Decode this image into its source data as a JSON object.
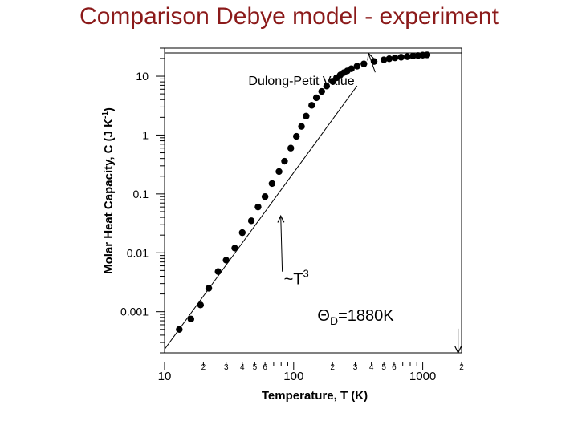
{
  "slide": {
    "title": "Comparison Debye model - experiment"
  },
  "chart_data": {
    "type": "scatter",
    "scale": "log-log",
    "xlabel": "Temperature, T (K)",
    "ylabel_main": "Molar Heat Capacity, C  (J K",
    "ylabel_sup": "-1",
    "ylabel_end": ")",
    "xlim": [
      10,
      2000
    ],
    "ylim": [
      0.0002,
      30
    ],
    "x_major_ticks": [
      10,
      100,
      1000
    ],
    "x_major_labels": [
      "10",
      "100",
      "1000"
    ],
    "x_minor_ticks": [
      20,
      30,
      40,
      50,
      60,
      200,
      300,
      400,
      500,
      600,
      2000
    ],
    "x_minor_labels": [
      "2",
      "3",
      "4",
      "5",
      "6",
      "2",
      "3",
      "4",
      "5",
      "6",
      "2"
    ],
    "y_major_ticks": [
      0.001,
      0.01,
      0.1,
      1,
      10
    ],
    "y_major_labels": [
      "0.001",
      "0.01",
      "0.1",
      "1",
      "10"
    ],
    "grid": false,
    "series": [
      {
        "kind": "points",
        "x": [
          13,
          16,
          19,
          22,
          26,
          30,
          35,
          40,
          47,
          53,
          60,
          68,
          77,
          85,
          95,
          105,
          115,
          125,
          138,
          150,
          165,
          180,
          200,
          215,
          230,
          245,
          260,
          280,
          310,
          350,
          420,
          500,
          550,
          610,
          680,
          760,
          840,
          920,
          1000,
          1080
        ],
        "y": [
          0.0005,
          0.00075,
          0.0013,
          0.0025,
          0.0048,
          0.0075,
          0.012,
          0.022,
          0.035,
          0.06,
          0.09,
          0.15,
          0.24,
          0.36,
          0.6,
          0.95,
          1.4,
          2.1,
          3.2,
          4.3,
          5.5,
          6.8,
          8.2,
          9.4,
          10.5,
          11.5,
          12.3,
          13.4,
          14.8,
          16.2,
          17.8,
          19.0,
          19.8,
          20.5,
          21.0,
          21.5,
          22.0,
          22.4,
          22.8,
          23.0
        ]
      },
      {
        "kind": "line",
        "note": "T^3 law",
        "x": [
          10,
          310
        ],
        "y": [
          0.00023,
          6.85
        ]
      },
      {
        "kind": "line",
        "note": "Dulong-Petit",
        "x": [
          10,
          2000
        ],
        "y": [
          24.9,
          24.9
        ]
      }
    ],
    "annotations": [
      {
        "id": "dp",
        "text": "Dulong-Petit Value",
        "at_x": 50,
        "at_y": 8.5,
        "arrow_to_x": 380,
        "arrow_to_y": 24.5
      },
      {
        "id": "t3",
        "text": "~T",
        "sup": "3",
        "at_x": 84,
        "at_y": 0.0035,
        "arrow_to_x": 75,
        "arrow_to_y": 0.045
      },
      {
        "id": "theta",
        "text_prefix": "Θ",
        "text_sub": "D",
        "text_suffix": "=1880K",
        "at_x": 640,
        "at_y": 0.00085,
        "arrow_to_x": 1880,
        "arrow_to_y": 0.0002
      }
    ]
  }
}
